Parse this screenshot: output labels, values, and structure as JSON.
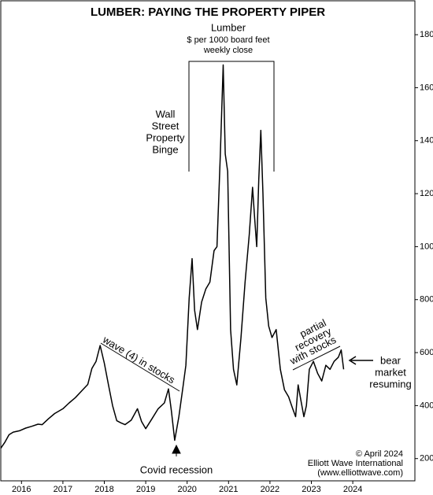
{
  "chart_data": {
    "type": "line",
    "title": "LUMBER: PAYING THE PROPERTY PIPER",
    "subtitle_lines": [
      "Lumber",
      "$ per 1000 board feet",
      "weekly close"
    ],
    "annotations": [
      {
        "lines": [
          "Wall",
          "Street",
          "Property",
          "Binge"
        ]
      },
      {
        "lines": [
          "wave (4) in stocks"
        ]
      },
      {
        "lines": [
          "partial",
          "recovery",
          "with stocks"
        ]
      },
      {
        "lines": [
          "bear",
          "market",
          "resuming"
        ]
      },
      {
        "lines": [
          "Covid recession"
        ]
      },
      {
        "lines": [
          "© April 2024",
          "Elliott Wave International",
          "(www.elliottwave.com)"
        ]
      }
    ],
    "color": "#000000",
    "xlim": [
      2016,
      2026
    ],
    "ylim": [
      116,
      1928
    ],
    "xticks": [
      {
        "value": 2016.5,
        "label": "2016"
      },
      {
        "value": 2017.5,
        "label": "2017"
      },
      {
        "value": 2018.5,
        "label": "2018"
      },
      {
        "value": 2019.5,
        "label": "2019"
      },
      {
        "value": 2020.5,
        "label": "2020"
      },
      {
        "value": 2021.5,
        "label": "2021"
      },
      {
        "value": 2022.5,
        "label": "2022"
      },
      {
        "value": 2023.5,
        "label": "2023"
      },
      {
        "value": 2024.5,
        "label": "2024"
      }
    ],
    "yticks": [
      200,
      400,
      600,
      800,
      1000,
      1200,
      1400,
      1600,
      1800
    ],
    "x": [
      2016.0,
      2016.1,
      2016.2,
      2016.3,
      2016.45,
      2016.6,
      2016.75,
      2016.9,
      2017.0,
      2017.15,
      2017.3,
      2017.5,
      2017.65,
      2017.8,
      2017.95,
      2018.1,
      2018.2,
      2018.3,
      2018.4,
      2018.5,
      2018.6,
      2018.7,
      2018.8,
      2018.9,
      2019.0,
      2019.15,
      2019.3,
      2019.4,
      2019.5,
      2019.65,
      2019.8,
      2019.95,
      2020.05,
      2020.12,
      2020.2,
      2020.3,
      2020.4,
      2020.47,
      2020.55,
      2020.62,
      2020.68,
      2020.75,
      2020.85,
      2020.95,
      2021.05,
      2021.15,
      2021.22,
      2021.3,
      2021.37,
      2021.42,
      2021.48,
      2021.55,
      2021.62,
      2021.7,
      2021.8,
      2021.9,
      2022.0,
      2022.08,
      2022.13,
      2022.18,
      2022.23,
      2022.28,
      2022.33,
      2022.4,
      2022.47,
      2022.55,
      2022.65,
      2022.75,
      2022.85,
      2022.95,
      2023.05,
      2023.12,
      2023.18,
      2023.25,
      2023.32,
      2023.38,
      2023.45,
      2023.55,
      2023.65,
      2023.75,
      2023.85,
      2023.95,
      2024.05,
      2024.15,
      2024.22,
      2024.28
    ],
    "values": [
      239,
      262,
      290,
      300,
      305,
      315,
      322,
      330,
      328,
      350,
      370,
      388,
      410,
      430,
      455,
      480,
      540,
      567,
      627,
      560,
      478,
      400,
      343,
      335,
      328,
      345,
      388,
      340,
      313,
      350,
      388,
      410,
      463,
      380,
      269,
      358,
      470,
      552,
      806,
      955,
      760,
      687,
      791,
      840,
      866,
      985,
      1000,
      1343,
      1686,
      1350,
      1284,
      687,
      537,
      478,
      657,
      866,
      1045,
      1224,
      1110,
      1000,
      1254,
      1439,
      1200,
      806,
      700,
      657,
      687,
      537,
      460,
      433,
      388,
      358,
      478,
      418,
      358,
      400,
      537,
      567,
      522,
      493,
      552,
      537,
      567,
      582,
      610,
      537
    ]
  }
}
